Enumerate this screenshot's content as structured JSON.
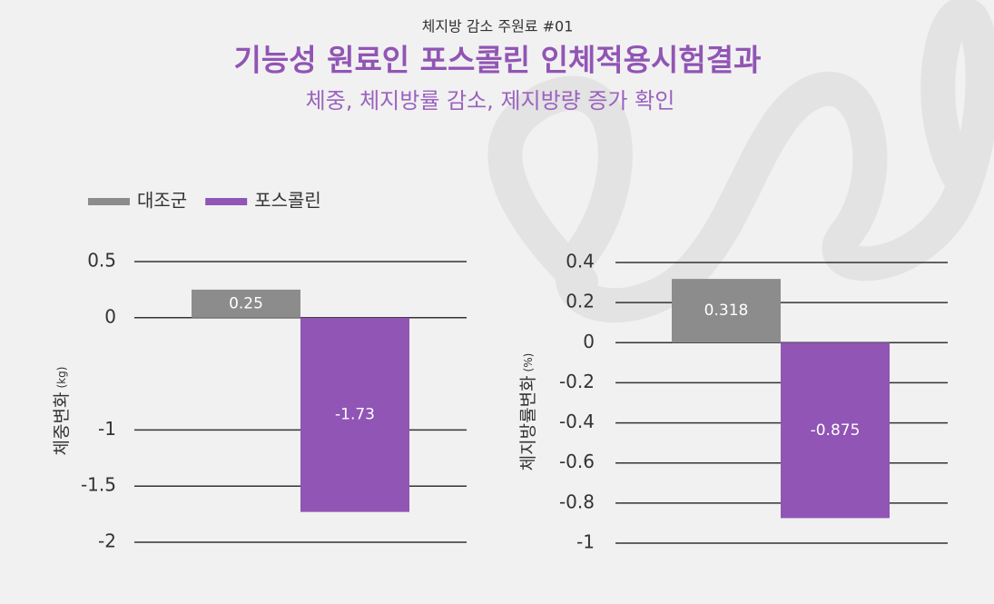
{
  "header": {
    "kicker": "체지방 감소 주원료 #01",
    "title": "기능성 원료인 포스콜린 인체적용시험결과",
    "subtitle": "체중, 체지방률 감소, 제지방량 증가 확인"
  },
  "chart_data": [
    {
      "type": "bar",
      "ylabel": "체중변화",
      "yunit": "(kg)",
      "series": [
        {
          "name": "대조군",
          "color": "#8c8c8c",
          "values": [
            0.25
          ]
        },
        {
          "name": "포스콜린",
          "color": "#9155b5",
          "values": [
            -1.73
          ]
        }
      ],
      "ylim": [
        -2,
        0.5
      ],
      "yticks": [
        0.5,
        0,
        -1,
        -1.5,
        -2
      ],
      "grid": true
    },
    {
      "type": "bar",
      "ylabel": "체지방률변화",
      "yunit": "(%)",
      "series": [
        {
          "name": "대조군",
          "color": "#8c8c8c",
          "values": [
            0.318
          ]
        },
        {
          "name": "포스콜린",
          "color": "#9155b5",
          "values": [
            -0.875
          ]
        }
      ],
      "ylim": [
        -1,
        0.4
      ],
      "yticks": [
        0.4,
        0.2,
        0,
        -0.2,
        -0.4,
        -0.6,
        -0.8,
        -1
      ],
      "grid": true
    }
  ]
}
